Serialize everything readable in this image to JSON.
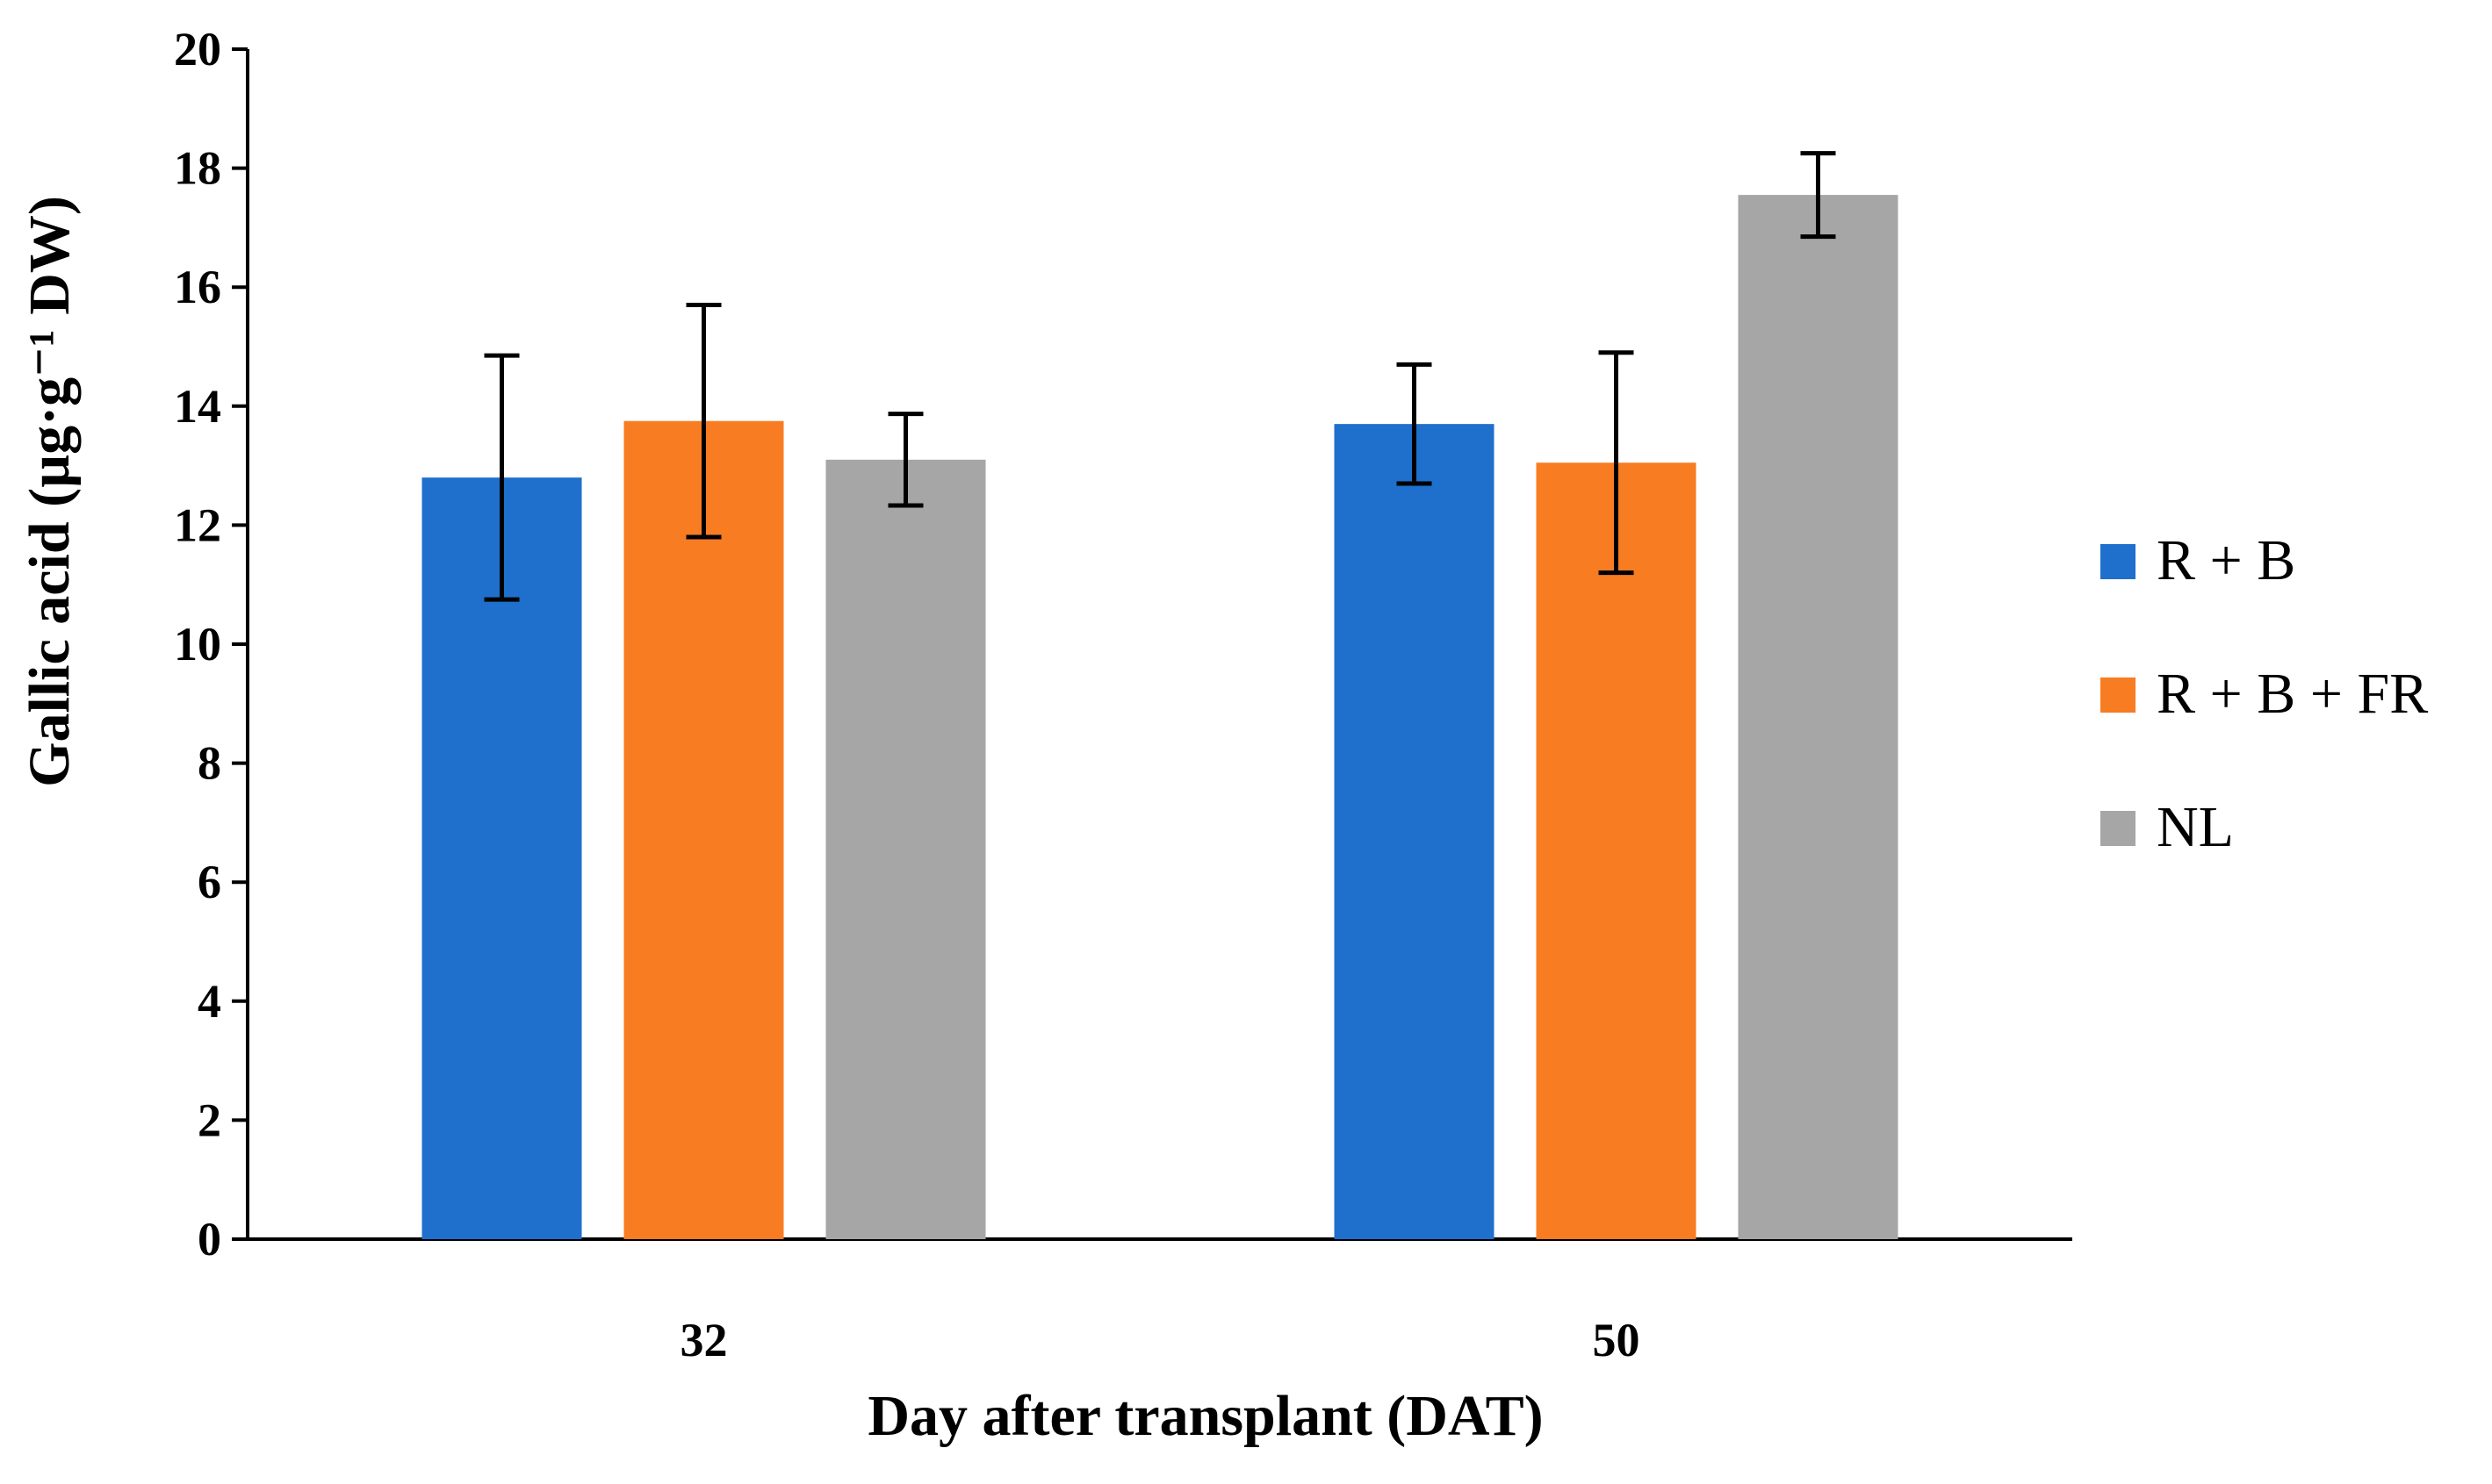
{
  "chart_data": {
    "type": "bar",
    "xlabel": "Day after transplant (DAT)",
    "ylabel": "Gallic acid (µg·g⁻¹ DW)",
    "ylim": [
      0,
      20
    ],
    "yticks": [
      0,
      2,
      4,
      6,
      8,
      10,
      12,
      14,
      16,
      18,
      20
    ],
    "categories": [
      "32",
      "50"
    ],
    "grid": false,
    "legend_position": "right",
    "series": [
      {
        "name": "R + B",
        "color": "#1f6fcc",
        "values": [
          12.8,
          13.7
        ],
        "errors": [
          2.05,
          1.0
        ]
      },
      {
        "name": "R + B + FR",
        "color": "#f87c22",
        "values": [
          13.75,
          13.05
        ],
        "errors": [
          1.95,
          1.85
        ]
      },
      {
        "name": "NL",
        "color": "#a6a6a6",
        "values": [
          13.1,
          17.55
        ],
        "errors": [
          0.77,
          0.7
        ]
      }
    ]
  }
}
